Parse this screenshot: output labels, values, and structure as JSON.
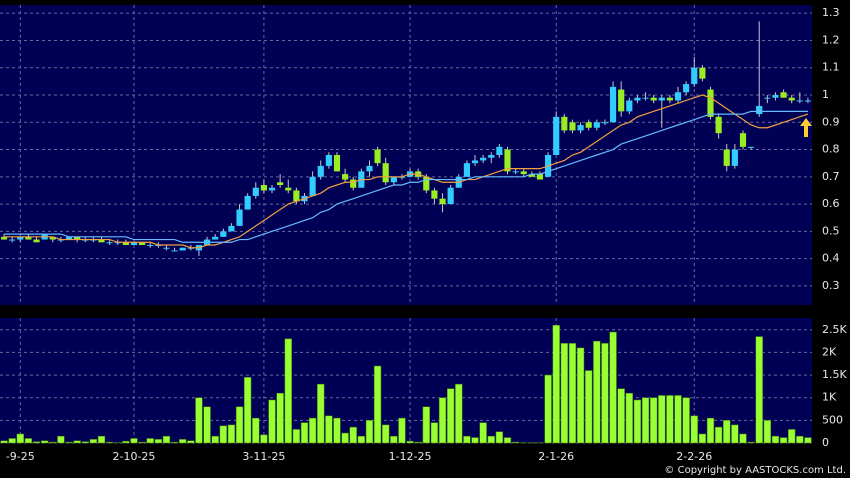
{
  "chart_data": {
    "type": "candlestick",
    "categories": [
      null,
      null,
      "-9-25",
      null,
      null,
      null,
      null,
      null,
      null,
      null,
      null,
      null,
      null,
      null,
      null,
      null,
      "2-10-25",
      null,
      null,
      null,
      null,
      null,
      null,
      null,
      null,
      null,
      null,
      null,
      null,
      null,
      null,
      null,
      "3-11-25",
      null,
      null,
      null,
      null,
      null,
      null,
      null,
      null,
      null,
      null,
      null,
      null,
      null,
      null,
      null,
      null,
      null,
      "1-12-25",
      null,
      null,
      null,
      null,
      null,
      null,
      null,
      null,
      null,
      null,
      null,
      null,
      null,
      null,
      null,
      null,
      null,
      "2-1-26",
      null,
      null,
      null,
      null,
      null,
      null,
      null,
      null,
      null,
      null,
      null,
      null,
      null,
      null,
      null,
      null,
      "2-2-26",
      null,
      null,
      null,
      null,
      null,
      null,
      null,
      null,
      null,
      null,
      null,
      null,
      null,
      null
    ],
    "open": [
      0.48,
      0.47,
      0.47,
      0.48,
      0.47,
      0.47,
      0.48,
      0.47,
      0.47,
      0.48,
      0.47,
      0.47,
      0.47,
      0.46,
      0.46,
      0.46,
      0.45,
      0.46,
      0.45,
      0.45,
      0.44,
      0.43,
      0.43,
      0.44,
      0.43,
      0.45,
      0.47,
      0.48,
      0.5,
      0.52,
      0.58,
      0.63,
      0.67,
      0.65,
      0.68,
      0.66,
      0.65,
      0.61,
      0.63,
      0.7,
      0.74,
      0.78,
      0.71,
      0.69,
      0.66,
      0.72,
      0.8,
      0.75,
      0.68,
      0.7,
      0.7,
      0.72,
      0.7,
      0.65,
      0.62,
      0.6,
      0.66,
      0.7,
      0.75,
      0.76,
      0.77,
      0.78,
      0.8,
      0.72,
      0.72,
      0.71,
      0.71,
      0.7,
      0.78,
      0.92,
      0.9,
      0.87,
      0.9,
      0.88,
      0.9,
      0.9,
      1.02,
      0.94,
      0.98,
      0.99,
      0.99,
      0.98,
      0.99,
      0.98,
      1.01,
      1.04,
      1.1,
      1.02,
      0.92,
      0.8,
      0.74,
      0.86,
      0.81,
      0.93,
      0.99,
      0.99,
      1.01,
      0.99,
      0.98,
      0.98
    ],
    "high": [
      0.49,
      0.48,
      0.48,
      0.49,
      0.48,
      0.49,
      0.48,
      0.48,
      0.48,
      0.48,
      0.48,
      0.48,
      0.48,
      0.47,
      0.47,
      0.47,
      0.46,
      0.46,
      0.46,
      0.46,
      0.45,
      0.44,
      0.44,
      0.45,
      0.45,
      0.48,
      0.49,
      0.51,
      0.53,
      0.6,
      0.64,
      0.68,
      0.69,
      0.67,
      0.71,
      0.69,
      0.66,
      0.64,
      0.72,
      0.76,
      0.79,
      0.79,
      0.73,
      0.7,
      0.73,
      0.76,
      0.81,
      0.77,
      0.7,
      0.71,
      0.73,
      0.73,
      0.71,
      0.66,
      0.64,
      0.67,
      0.71,
      0.76,
      0.78,
      0.78,
      0.79,
      0.82,
      0.81,
      0.73,
      0.73,
      0.72,
      0.72,
      0.79,
      0.94,
      0.93,
      0.91,
      0.9,
      0.91,
      0.91,
      0.91,
      1.05,
      1.05,
      0.99,
      1.0,
      1.01,
      1.0,
      1.0,
      1.0,
      1.03,
      1.05,
      1.14,
      1.11,
      1.03,
      0.93,
      0.82,
      0.82,
      0.87,
      0.81,
      1.27,
      1.0,
      1.01,
      1.02,
      1.0,
      1.01,
      0.99
    ],
    "low": [
      0.47,
      0.46,
      0.46,
      0.47,
      0.46,
      0.47,
      0.46,
      0.46,
      0.47,
      0.46,
      0.46,
      0.46,
      0.46,
      0.45,
      0.45,
      0.45,
      0.45,
      0.45,
      0.44,
      0.44,
      0.43,
      0.43,
      0.43,
      0.43,
      0.41,
      0.45,
      0.47,
      0.48,
      0.5,
      0.52,
      0.58,
      0.62,
      0.64,
      0.64,
      0.66,
      0.64,
      0.6,
      0.6,
      0.63,
      0.69,
      0.73,
      0.72,
      0.68,
      0.65,
      0.66,
      0.7,
      0.74,
      0.67,
      0.67,
      0.69,
      0.7,
      0.69,
      0.64,
      0.6,
      0.57,
      0.6,
      0.66,
      0.7,
      0.74,
      0.75,
      0.75,
      0.77,
      0.71,
      0.71,
      0.7,
      0.7,
      0.69,
      0.7,
      0.78,
      0.86,
      0.86,
      0.86,
      0.87,
      0.87,
      0.89,
      0.9,
      0.92,
      0.93,
      0.97,
      0.98,
      0.97,
      0.88,
      0.97,
      0.97,
      1.0,
      1.03,
      1.05,
      0.91,
      0.84,
      0.72,
      0.73,
      0.8,
      0.8,
      0.92,
      0.97,
      0.98,
      0.99,
      0.97,
      0.97,
      0.97
    ],
    "close": [
      0.47,
      0.47,
      0.48,
      0.47,
      0.46,
      0.49,
      0.47,
      0.47,
      0.48,
      0.47,
      0.47,
      0.47,
      0.46,
      0.46,
      0.46,
      0.45,
      0.46,
      0.45,
      0.45,
      0.45,
      0.44,
      0.43,
      0.44,
      0.44,
      0.45,
      0.47,
      0.48,
      0.5,
      0.52,
      0.58,
      0.63,
      0.66,
      0.65,
      0.66,
      0.67,
      0.65,
      0.61,
      0.63,
      0.7,
      0.74,
      0.78,
      0.72,
      0.69,
      0.66,
      0.72,
      0.74,
      0.75,
      0.68,
      0.7,
      0.7,
      0.72,
      0.7,
      0.65,
      0.62,
      0.6,
      0.66,
      0.7,
      0.75,
      0.76,
      0.77,
      0.78,
      0.81,
      0.72,
      0.72,
      0.71,
      0.7,
      0.69,
      0.78,
      0.92,
      0.87,
      0.87,
      0.89,
      0.88,
      0.9,
      0.9,
      1.03,
      0.94,
      0.98,
      0.99,
      0.99,
      0.98,
      0.99,
      0.98,
      1.01,
      1.04,
      1.1,
      1.06,
      0.92,
      0.86,
      0.74,
      0.8,
      0.81,
      0.81,
      0.96,
      0.99,
      1.0,
      0.99,
      0.98,
      0.98,
      0.98
    ],
    "up_color": "#33ccff",
    "down_color": "#99ee22",
    "ma_lines": [
      {
        "color": "#f0a040",
        "values": [
          0.48,
          0.48,
          0.48,
          0.48,
          0.48,
          0.48,
          0.48,
          0.47,
          0.47,
          0.47,
          0.47,
          0.47,
          0.47,
          0.47,
          0.46,
          0.46,
          0.46,
          0.46,
          0.46,
          0.45,
          0.45,
          0.45,
          0.45,
          0.44,
          0.44,
          0.45,
          0.45,
          0.46,
          0.47,
          0.48,
          0.5,
          0.52,
          0.54,
          0.56,
          0.58,
          0.6,
          0.61,
          0.62,
          0.63,
          0.64,
          0.66,
          0.67,
          0.68,
          0.68,
          0.69,
          0.69,
          0.7,
          0.7,
          0.7,
          0.7,
          0.71,
          0.71,
          0.7,
          0.69,
          0.68,
          0.68,
          0.68,
          0.69,
          0.69,
          0.7,
          0.71,
          0.72,
          0.73,
          0.73,
          0.73,
          0.73,
          0.73,
          0.74,
          0.75,
          0.76,
          0.78,
          0.79,
          0.81,
          0.83,
          0.85,
          0.87,
          0.89,
          0.9,
          0.92,
          0.93,
          0.94,
          0.95,
          0.96,
          0.97,
          0.98,
          0.99,
          1.0,
          0.99,
          0.97,
          0.95,
          0.93,
          0.91,
          0.89,
          0.88,
          0.88,
          0.89,
          0.9,
          0.91,
          0.92,
          0.93
        ]
      },
      {
        "color": "#66bbff",
        "values": [
          0.49,
          0.49,
          0.49,
          0.49,
          0.49,
          0.49,
          0.49,
          0.49,
          0.48,
          0.48,
          0.48,
          0.48,
          0.48,
          0.48,
          0.48,
          0.48,
          0.47,
          0.47,
          0.47,
          0.47,
          0.47,
          0.47,
          0.46,
          0.46,
          0.46,
          0.46,
          0.46,
          0.46,
          0.46,
          0.47,
          0.47,
          0.48,
          0.49,
          0.5,
          0.51,
          0.52,
          0.53,
          0.54,
          0.55,
          0.57,
          0.58,
          0.6,
          0.61,
          0.62,
          0.63,
          0.64,
          0.65,
          0.66,
          0.67,
          0.67,
          0.68,
          0.68,
          0.69,
          0.69,
          0.69,
          0.69,
          0.69,
          0.69,
          0.7,
          0.7,
          0.7,
          0.7,
          0.7,
          0.7,
          0.7,
          0.71,
          0.71,
          0.72,
          0.73,
          0.74,
          0.75,
          0.76,
          0.77,
          0.78,
          0.79,
          0.8,
          0.82,
          0.83,
          0.84,
          0.85,
          0.86,
          0.87,
          0.88,
          0.89,
          0.9,
          0.91,
          0.92,
          0.93,
          0.93,
          0.93,
          0.93,
          0.93,
          0.94,
          0.94,
          0.94,
          0.94,
          0.94,
          0.94,
          0.94,
          0.94
        ]
      }
    ],
    "ylim": [
      0.23,
      1.33
    ],
    "yticks": [
      0.3,
      0.4,
      0.5,
      0.6,
      0.7,
      0.8,
      0.9,
      1,
      1.1,
      1.2,
      1.3
    ],
    "grid": true,
    "volume": {
      "type": "bar",
      "color": "#99ff33",
      "values": [
        50,
        100,
        200,
        100,
        30,
        50,
        20,
        150,
        20,
        50,
        30,
        80,
        150,
        20,
        10,
        40,
        100,
        20,
        100,
        80,
        150,
        20,
        80,
        50,
        1000,
        800,
        150,
        380,
        400,
        800,
        1450,
        550,
        180,
        950,
        1100,
        2300,
        300,
        450,
        550,
        1300,
        600,
        550,
        220,
        350,
        150,
        500,
        1700,
        400,
        150,
        550,
        40,
        20,
        800,
        450,
        1000,
        1200,
        1300,
        150,
        120,
        450,
        150,
        250,
        120,
        20,
        10,
        10,
        10,
        1500,
        2600,
        2200,
        2200,
        2100,
        1600,
        2250,
        2200,
        2450,
        1200,
        1100,
        950,
        1000,
        1000,
        1050,
        1050,
        1050,
        1000,
        600,
        200,
        550,
        350,
        500,
        400,
        200,
        20,
        2350,
        500,
        150,
        120,
        300,
        150,
        120
      ],
      "ylim": [
        0,
        2760
      ],
      "yticks": [
        0,
        500,
        {
          "value": 1000,
          "label": "1K"
        },
        {
          "value": 1500,
          "label": "1.5K"
        },
        {
          "value": 2000,
          "label": "2K"
        },
        {
          "value": 2500,
          "label": "2.5K"
        }
      ]
    },
    "credit": "© Copyright by AASTOCKS.com Ltd."
  }
}
